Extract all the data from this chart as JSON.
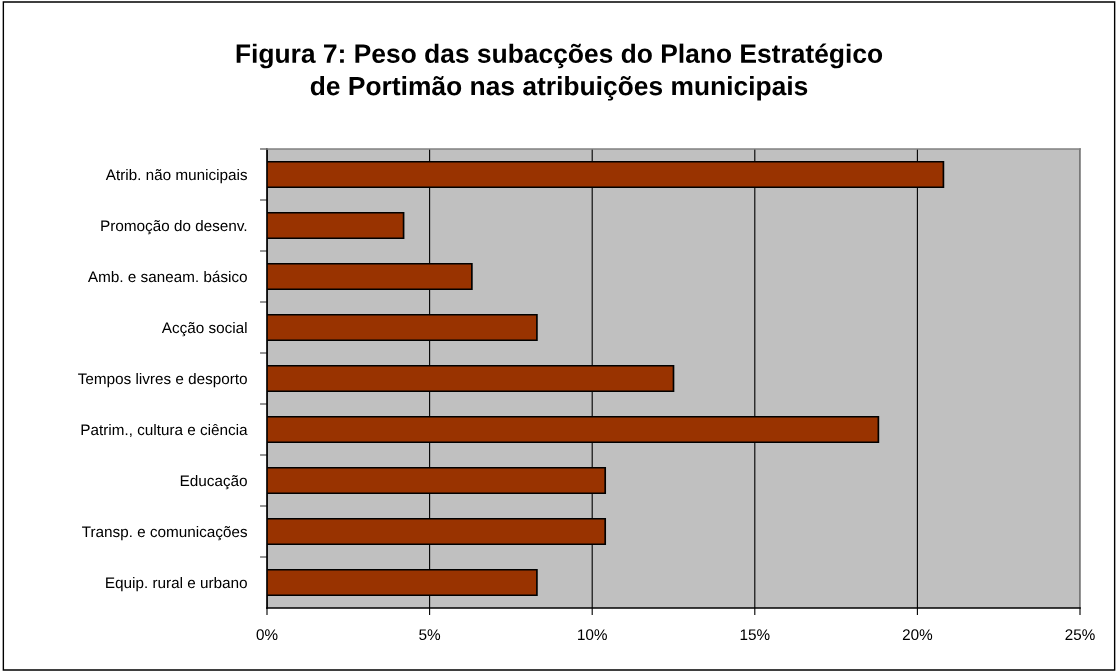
{
  "chart_data": {
    "type": "bar",
    "orientation": "horizontal",
    "title": "Figura 7: Peso das subacções do Plano Estratégico\nde Portimão nas atribuições municipais",
    "categories": [
      "Atrib. não municipais",
      "Promoção do desenv.",
      "Amb. e saneam. básico",
      "Acção social",
      "Tempos livres e desporto",
      "Patrim., cultura e ciência",
      "Educação",
      "Transp. e comunicações",
      "Equip. rural e urbano"
    ],
    "values": [
      20.8,
      4.2,
      6.3,
      8.3,
      12.5,
      18.8,
      10.4,
      10.4,
      8.3
    ],
    "color": "#993300",
    "xlim": [
      0,
      25
    ],
    "xticks": [
      {
        "value": 0,
        "label": "0%"
      },
      {
        "value": 5,
        "label": "5%"
      },
      {
        "value": 10,
        "label": "10%"
      },
      {
        "value": 15,
        "label": "15%"
      },
      {
        "value": 20,
        "label": "20%"
      },
      {
        "value": 25,
        "label": "25%"
      }
    ],
    "grid": "x",
    "legend": false
  }
}
